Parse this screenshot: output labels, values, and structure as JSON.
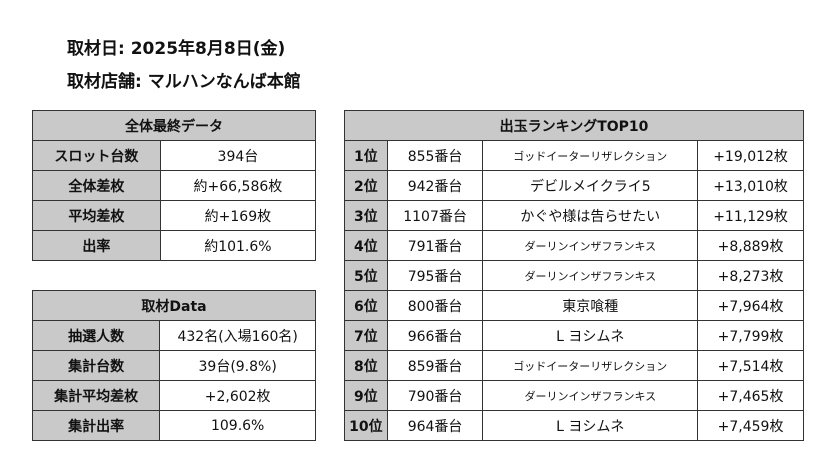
{
  "header": {
    "line1": "取材日: 2025年8月8日(金)",
    "line2": "取材店舗: マルハンなんば本館"
  },
  "summary": {
    "title": "全体最終データ",
    "rows": [
      [
        "スロット台数",
        "394台"
      ],
      [
        "全体差枚",
        "約+66,586枚"
      ],
      [
        "平均差枚",
        "約+169枚"
      ],
      [
        "出率",
        "約101.6%"
      ]
    ]
  },
  "coverage": {
    "title": "取材Data",
    "rows": [
      [
        "抽選人数",
        "432名(入場160名)"
      ],
      [
        "集計台数",
        "39台(9.8%)"
      ],
      [
        "集計平均差枚",
        "+2,602枚"
      ],
      [
        "集計出率",
        "109.6%"
      ]
    ]
  },
  "ranking": {
    "title": "出玉ランキングTOP10",
    "rows": [
      [
        "1位",
        "855番台",
        "ゴッドイーターリザレクション",
        "+19,012枚"
      ],
      [
        "2位",
        "942番台",
        "デビルメイクライ5",
        "+13,010枚"
      ],
      [
        "3位",
        "1107番台",
        "かぐや様は告らせたい",
        "+11,129枚"
      ],
      [
        "4位",
        "791番台",
        "ダーリンインザフランキス",
        "+8,889枚"
      ],
      [
        "5位",
        "795番台",
        "ダーリンインザフランキス",
        "+8,273枚"
      ],
      [
        "6位",
        "800番台",
        "東京喰種",
        "+7,964枚"
      ],
      [
        "7位",
        "966番台",
        "L ヨシムネ",
        "+7,799枚"
      ],
      [
        "8位",
        "859番台",
        "ゴッドイーターリザレクション",
        "+7,514枚"
      ],
      [
        "9位",
        "790番台",
        "ダーリンインザフランキス",
        "+7,465枚"
      ],
      [
        "10位",
        "964番台",
        "L ヨシムネ",
        "+7,459枚"
      ]
    ]
  }
}
